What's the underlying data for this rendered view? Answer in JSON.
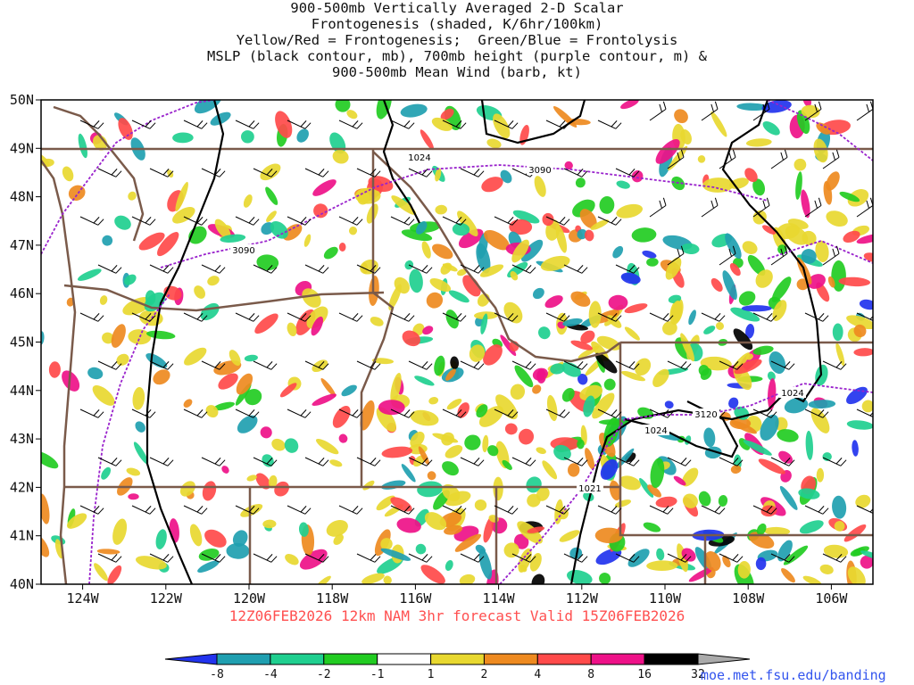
{
  "title": {
    "line1": "900-500mb Vertically Averaged 2-D Scalar",
    "line2": "Frontogenesis (shaded, K/6hr/100km)",
    "line3": "Yellow/Red = Frontogenesis;  Green/Blue = Frontolysis",
    "line4": "MSLP (black contour, mb), 700mb height (purple contour, m) &",
    "line5": "900-500mb Mean Wind (barb, kt)"
  },
  "footer": "12Z06FEB2026 12km NAM 3hr forecast Valid 15Z06FEB2026",
  "source_url": "moe.met.fsu.edu/banding",
  "map": {
    "lat_range": [
      40,
      50
    ],
    "lon_range": [
      -125,
      -105
    ],
    "lat_labels": [
      "50N",
      "49N",
      "48N",
      "47N",
      "46N",
      "45N",
      "44N",
      "43N",
      "42N",
      "41N",
      "40N"
    ],
    "lon_labels": [
      "124W",
      "122W",
      "120W",
      "118W",
      "116W",
      "114W",
      "112W",
      "110W",
      "108W",
      "106W"
    ],
    "contour_labels": [
      {
        "text": "1024",
        "kind": "mslp"
      },
      {
        "text": "3090",
        "kind": "height"
      },
      {
        "text": "3090",
        "kind": "height"
      },
      {
        "text": "1024",
        "kind": "mslp"
      },
      {
        "text": "3120",
        "kind": "height"
      },
      {
        "text": "1024",
        "kind": "mslp"
      },
      {
        "text": "1021",
        "kind": "mslp"
      }
    ]
  },
  "colorbar": {
    "labels": [
      "-8",
      "-4",
      "-2",
      "-1",
      "1",
      "2",
      "4",
      "8",
      "16",
      "32"
    ],
    "colors": [
      "#2233ee",
      "#1f9fb0",
      "#1fcf8f",
      "#22cc22",
      "#ffffff",
      "#e8d830",
      "#ee8a20",
      "#ff4a4a",
      "#ee1188",
      "#000000",
      "#aaaaaa"
    ]
  },
  "colors": {
    "mslp_contour": "#000000",
    "height_contour": "#9922cc",
    "borders": "#7a5a4a",
    "footer_text": "#ff5050",
    "url_text": "#3355ee"
  }
}
